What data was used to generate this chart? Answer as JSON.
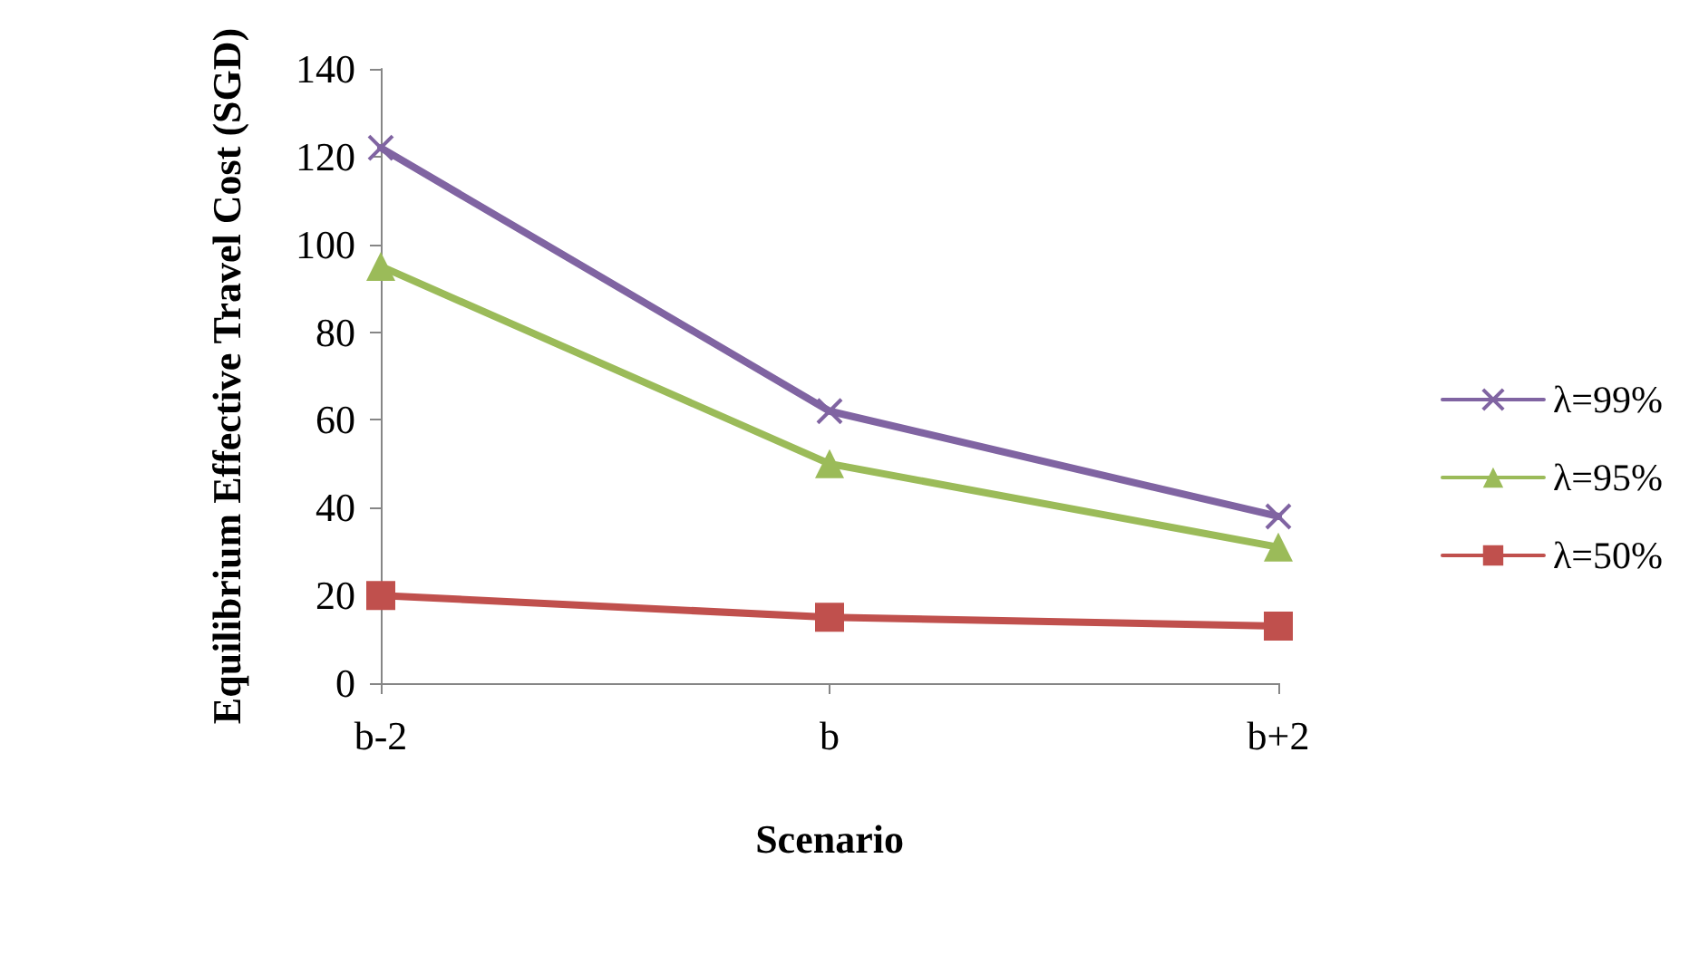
{
  "chart_data": {
    "type": "line",
    "xlabel": "Scenario",
    "ylabel": "Equilibrium Effective Travel Cost (SGD)",
    "categories": [
      "b-2",
      "b",
      "b+2"
    ],
    "series": [
      {
        "name": "λ=99%",
        "color": "#8064a2",
        "marker": "cross",
        "values": [
          122,
          62,
          38
        ]
      },
      {
        "name": "λ=95%",
        "color": "#9bbb59",
        "marker": "triangle",
        "values": [
          95,
          50,
          31
        ]
      },
      {
        "name": "λ=50%",
        "color": "#c0504d",
        "marker": "square",
        "values": [
          20,
          15,
          13
        ]
      }
    ],
    "ylim": [
      0,
      140
    ],
    "yticks": [
      0,
      20,
      40,
      60,
      80,
      100,
      120,
      140
    ],
    "grid": false,
    "legend": "right",
    "line_style": "solid"
  }
}
